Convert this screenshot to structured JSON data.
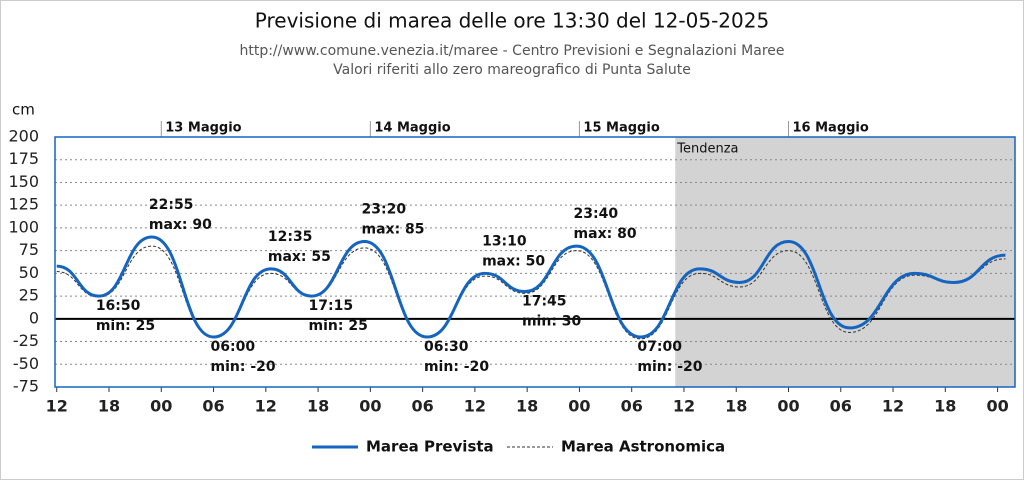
{
  "chart_data": {
    "type": "line",
    "title": "Previsione di marea delle ore 13:30 del 12-05-2025",
    "subtitle": [
      "http://www.comune.venezia.it/maree - Centro Previsioni e Segnalazioni Maree",
      "Valori riferiti allo zero mareografico di Punta Salute"
    ],
    "y_label": "cm",
    "x": [
      12,
      16.83,
      22.92,
      30,
      36.58,
      41.25,
      47.33,
      54.5,
      61.17,
      65.75,
      71.67,
      79,
      85.8,
      90.4,
      96,
      103,
      110.5,
      115,
      120.9
    ],
    "series": [
      {
        "name": "Marea Prevista",
        "color": "#1565c0",
        "style": "solid",
        "values": [
          58,
          25,
          90,
          -20,
          55,
          25,
          85,
          -20,
          50,
          30,
          80,
          -20,
          55,
          40,
          85,
          -10,
          50,
          40,
          70
        ]
      },
      {
        "name": "Marea Astronomica",
        "color": "#333333",
        "style": "dashed",
        "values": [
          52,
          24,
          80,
          -20,
          50,
          25,
          78,
          -20,
          47,
          28,
          75,
          -22,
          50,
          35,
          75,
          -15,
          48,
          40,
          66
        ]
      }
    ],
    "xlim": [
      11.8,
      122
    ],
    "xticks": [
      {
        "value": 12,
        "label": "12"
      },
      {
        "value": 18,
        "label": "18"
      },
      {
        "value": 24,
        "label": "00"
      },
      {
        "value": 30,
        "label": "06"
      },
      {
        "value": 36,
        "label": "12"
      },
      {
        "value": 42,
        "label": "18"
      },
      {
        "value": 48,
        "label": "00"
      },
      {
        "value": 54,
        "label": "06"
      },
      {
        "value": 60,
        "label": "12"
      },
      {
        "value": 66,
        "label": "18"
      },
      {
        "value": 72,
        "label": "00"
      },
      {
        "value": 78,
        "label": "06"
      },
      {
        "value": 84,
        "label": "12"
      },
      {
        "value": 90,
        "label": "18"
      },
      {
        "value": 96,
        "label": "00"
      },
      {
        "value": 102,
        "label": "06"
      },
      {
        "value": 108,
        "label": "12"
      },
      {
        "value": 114,
        "label": "18"
      },
      {
        "value": 120,
        "label": "00"
      }
    ],
    "day_labels": [
      {
        "value": 24,
        "label": "13 Maggio"
      },
      {
        "value": 48,
        "label": "14 Maggio"
      },
      {
        "value": 72,
        "label": "15 Maggio"
      },
      {
        "value": 96,
        "label": "16 Maggio"
      }
    ],
    "ylim": [
      -75,
      200
    ],
    "yticks": [
      -75,
      -50,
      -25,
      0,
      25,
      50,
      75,
      100,
      125,
      150,
      175,
      200
    ],
    "grid": true,
    "trend": {
      "start": 83,
      "label": "Tendenza"
    },
    "annotations": [
      {
        "x": 22.92,
        "y": 90,
        "time": "22:55",
        "label": "max: 90"
      },
      {
        "x": 16.83,
        "y": 25,
        "time": "16:50",
        "label": "min: 25"
      },
      {
        "x": 30,
        "y": -20,
        "time": "06:00",
        "label": "min: -20"
      },
      {
        "x": 36.58,
        "y": 55,
        "time": "12:35",
        "label": "max: 55"
      },
      {
        "x": 41.25,
        "y": 25,
        "time": "17:15",
        "label": "min: 25"
      },
      {
        "x": 47.33,
        "y": 85,
        "time": "23:20",
        "label": "max: 85"
      },
      {
        "x": 54.5,
        "y": -20,
        "time": "06:30",
        "label": "min: -20"
      },
      {
        "x": 61.17,
        "y": 50,
        "time": "13:10",
        "label": "max: 50"
      },
      {
        "x": 65.75,
        "y": 30,
        "time": "17:45",
        "label": "min: 30"
      },
      {
        "x": 71.67,
        "y": 80,
        "time": "23:40",
        "label": "max: 80"
      },
      {
        "x": 79,
        "y": -20,
        "time": "07:00",
        "label": "min: -20"
      }
    ]
  }
}
